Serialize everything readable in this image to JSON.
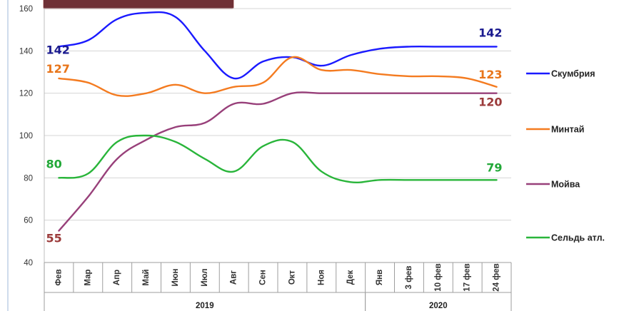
{
  "chart_data": {
    "type": "line",
    "title": "",
    "xlabel": "",
    "ylabel": "",
    "ylim": [
      40,
      160
    ],
    "yticks": [
      40,
      60,
      80,
      100,
      120,
      140,
      160
    ],
    "categories": [
      "Фев",
      "Мар",
      "Апр",
      "Май",
      "Июн",
      "Июл",
      "Авг",
      "Сен",
      "Окт",
      "Ноя",
      "Дек",
      "Янв",
      "3 фев",
      "10 фев",
      "17 фев",
      "24 фев"
    ],
    "groups": [
      {
        "label": "2019",
        "from": 0,
        "to": 10
      },
      {
        "label": "2020",
        "from": 11,
        "to": 15
      }
    ],
    "grid": true,
    "legend": "right",
    "series": [
      {
        "name": "Скумбрия",
        "color": "#1a1aff",
        "values": [
          142,
          145,
          155,
          158,
          156,
          140,
          127,
          135,
          137,
          133,
          138,
          141,
          142,
          142,
          142,
          142
        ],
        "first_label": "142",
        "last_label": "142",
        "first_label_color": "#1a1a8f",
        "last_label_color": "#1a1a8f"
      },
      {
        "name": "Минтай",
        "color": "#f47b20",
        "values": [
          127,
          125,
          119,
          120,
          124,
          120,
          123,
          125,
          137,
          131,
          131,
          129,
          128,
          128,
          127,
          123
        ],
        "first_label": "127",
        "last_label": "123",
        "first_label_color": "#e8751a",
        "last_label_color": "#e8751a"
      },
      {
        "name": "Мойва",
        "color": "#98407a",
        "values": [
          55,
          71,
          89,
          98,
          104,
          106,
          115,
          115,
          120,
          120,
          120,
          120,
          120,
          120,
          120,
          120
        ],
        "first_label": "55",
        "last_label": "120",
        "first_label_color": "#9b3a3a",
        "last_label_color": "#9b3a3a"
      },
      {
        "name": "Сельдь атл.",
        "color": "#29b53a",
        "values": [
          80,
          82,
          97,
          100,
          97,
          89,
          83,
          95,
          97,
          83,
          78,
          79,
          79,
          79,
          79,
          79
        ],
        "first_label": "80",
        "last_label": "79",
        "first_label_color": "#22a838",
        "last_label_color": "#22a838"
      }
    ]
  }
}
